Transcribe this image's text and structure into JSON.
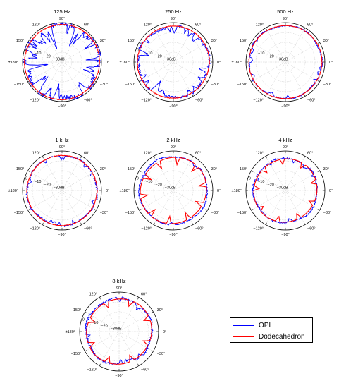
{
  "chart_data": {
    "type": "polar",
    "legend": {
      "placement": "bottom-right",
      "entries": [
        {
          "name": "OPL",
          "color": "#0000ff"
        },
        {
          "name": "Dodecahedron",
          "color": "#ff0000"
        }
      ]
    },
    "angle_tick_labels": [
      "0°",
      "30°",
      "60°",
      "90°",
      "120°",
      "150°",
      "±180°",
      "−150°",
      "−120°",
      "−90°",
      "−60°",
      "−30°"
    ],
    "angle_ticks_deg": [
      0,
      30,
      60,
      90,
      120,
      150,
      180,
      -150,
      -120,
      -90,
      -60,
      -30
    ],
    "radial_tick_labels": [
      "0",
      "−10",
      "−20",
      "−30dB"
    ],
    "radial_ticks_db": [
      0,
      -10,
      -20,
      -30
    ],
    "rlim_db": [
      -40,
      0
    ],
    "grid": true,
    "panels": [
      {
        "title": "125 Hz",
        "opl": {
          "level_db": -2.5,
          "ripple_db": 5.5,
          "spike_count": 26
        },
        "dodecahedron": {
          "level_db": -2,
          "ripple_db": 0.6,
          "lobes": 0
        }
      },
      {
        "title": "250 Hz",
        "opl": {
          "level_db": -4,
          "ripple_db": 2.5,
          "spike_count": 22
        },
        "dodecahedron": {
          "level_db": -3.5,
          "ripple_db": 0.5,
          "lobes": 0
        }
      },
      {
        "title": "500 Hz",
        "opl": {
          "level_db": -3,
          "ripple_db": 1.3,
          "spike_count": 10
        },
        "dodecahedron": {
          "level_db": -3,
          "ripple_db": 0.4,
          "lobes": 0
        }
      },
      {
        "title": "1 kHz",
        "opl": {
          "level_db": -4.5,
          "ripple_db": 1.6,
          "spike_count": 12
        },
        "dodecahedron": {
          "level_db": -4.5,
          "ripple_db": 0.6,
          "lobes": 0
        }
      },
      {
        "title": "2 kHz",
        "opl": {
          "level_db": -5.5,
          "ripple_db": 1.2,
          "spike_count": 4
        },
        "dodecahedron": {
          "level_db": -6.5,
          "ripple_db": 3.5,
          "lobes": 10
        }
      },
      {
        "title": "4 kHz",
        "opl": {
          "level_db": -7.5,
          "ripple_db": 1.5,
          "spike_count": 6
        },
        "dodecahedron": {
          "level_db": -8,
          "ripple_db": 2.5,
          "lobes": 9
        }
      },
      {
        "title": "8 kHz",
        "opl": {
          "level_db": -6.5,
          "ripple_db": 1.8,
          "spike_count": 8
        },
        "dodecahedron": {
          "level_db": -7,
          "ripple_db": 2.8,
          "lobes": 8
        }
      }
    ]
  }
}
